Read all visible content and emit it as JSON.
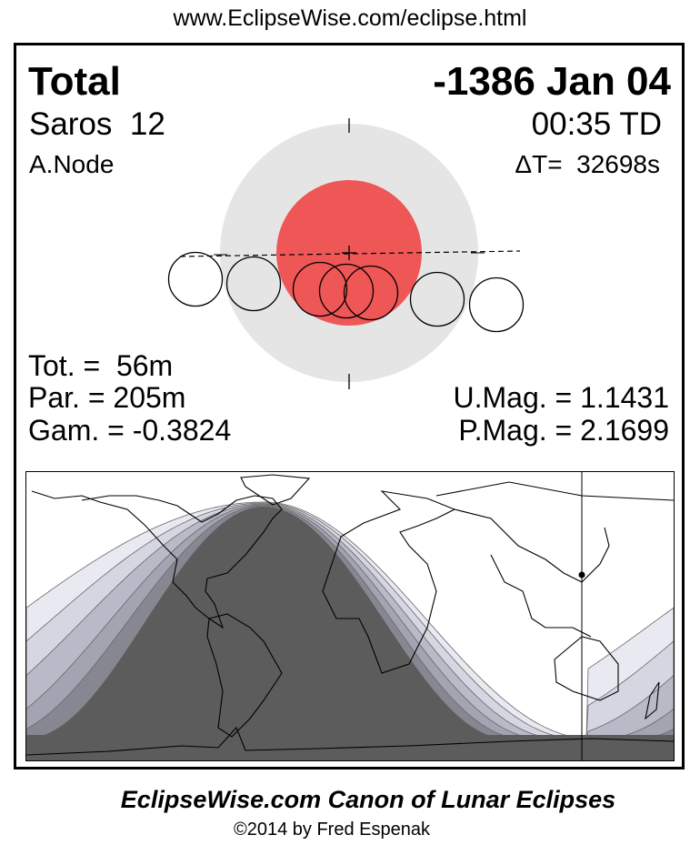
{
  "url": "www.EclipseWise.com/eclipse.html",
  "header": {
    "eclipse_type": "Total",
    "date": "-1386 Jan 04",
    "saros": "Saros  12",
    "time": "00:35 TD",
    "node": "A.Node",
    "delta_t": "ΔT=  32698s"
  },
  "stats": {
    "totality": "Tot. =  56m",
    "partial": "Par. = 205m",
    "gamma": "Gam. = -0.3824",
    "umbral_mag": "U.Mag. = 1.1431",
    "penumbral_mag": "P.Mag. = 2.1699"
  },
  "colors": {
    "umbra": "#ef5656",
    "penumbra": "#e5e5e5",
    "map_total": "#5c5c5c",
    "map_bands": [
      "#e9e9f1",
      "#d6d6e3",
      "#b9b9c8",
      "#a3a3b2",
      "#878792"
    ]
  },
  "footer": {
    "title": "EclipseWise.com Canon of Lunar Eclipses",
    "copyright": "©2014 by Fred Espenak"
  }
}
